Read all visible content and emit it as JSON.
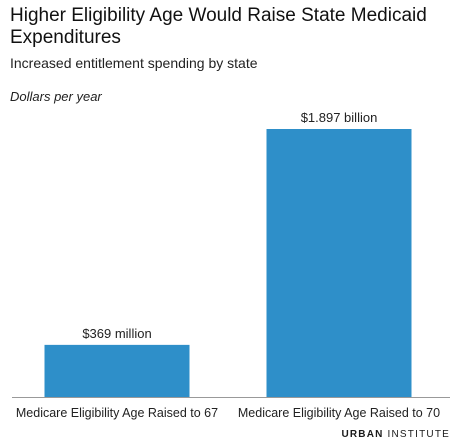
{
  "chart_data": {
    "type": "bar",
    "title": "Higher Eligibility Age Would Raise State Medicaid Expenditures",
    "subtitle": "Increased entitlement spending by state",
    "ylabel": "Dollars per year",
    "xlabel": "",
    "categories": [
      "Medicare Eligibility Age Raised to 67",
      "Medicare Eligibility Age Raised to 70"
    ],
    "values": [
      0.369,
      1.897
    ],
    "value_unit": "billion dollars",
    "data_labels": [
      "$369 million",
      "$1.897 billion"
    ],
    "ylim": [
      0,
      1.897
    ],
    "grid": false,
    "legend": "none",
    "bar_color": "#2e8fc9",
    "axis_color": "#999999"
  },
  "footer": {
    "brand_bold": "URBAN",
    "brand_rest": "INSTITUTE"
  }
}
